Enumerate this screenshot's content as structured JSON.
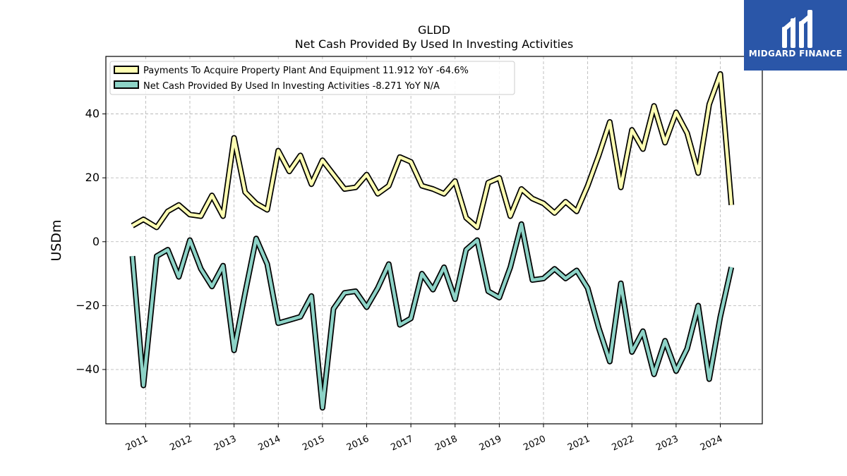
{
  "colors": {
    "series1": "#ffffb3",
    "series2": "#8dd3c7",
    "grid": "#b0b0b0",
    "logo_bg": "#2a56a8"
  },
  "logo": {
    "text": "MIDGARD FINANCE",
    "icon": "midgard-m-logo-icon"
  },
  "chart_data": {
    "type": "line",
    "title": "GLDD",
    "subtitle": "Net Cash Provided By Used In Investing Activities",
    "ylabel": "USDm",
    "xlabel": "",
    "ylim": [
      -57,
      58
    ],
    "xlim": [
      2010.1,
      2024.95
    ],
    "yticks": [
      {
        "v": 40,
        "label": "40"
      },
      {
        "v": 20,
        "label": "20"
      },
      {
        "v": 0,
        "label": "0"
      },
      {
        "v": -20,
        "label": "−20"
      },
      {
        "v": -40,
        "label": "−40"
      }
    ],
    "xticks": [
      {
        "v": 2011,
        "label": "2011"
      },
      {
        "v": 2012,
        "label": "2012"
      },
      {
        "v": 2013,
        "label": "2013"
      },
      {
        "v": 2014,
        "label": "2014"
      },
      {
        "v": 2015,
        "label": "2015"
      },
      {
        "v": 2016,
        "label": "2016"
      },
      {
        "v": 2017,
        "label": "2017"
      },
      {
        "v": 2018,
        "label": "2018"
      },
      {
        "v": 2019,
        "label": "2019"
      },
      {
        "v": 2020,
        "label": "2020"
      },
      {
        "v": 2021,
        "label": "2021"
      },
      {
        "v": 2022,
        "label": "2022"
      },
      {
        "v": 2023,
        "label": "2023"
      },
      {
        "v": 2024,
        "label": "2024"
      }
    ],
    "grid": true,
    "legend": "upper-left",
    "x": [
      2010.7,
      2010.95,
      2011.25,
      2011.5,
      2011.75,
      2012.0,
      2012.25,
      2012.5,
      2012.75,
      2013.0,
      2013.25,
      2013.5,
      2013.75,
      2014.0,
      2014.25,
      2014.5,
      2014.75,
      2015.0,
      2015.25,
      2015.5,
      2015.75,
      2016.0,
      2016.25,
      2016.5,
      2016.75,
      2017.0,
      2017.25,
      2017.5,
      2017.75,
      2018.0,
      2018.25,
      2018.5,
      2018.75,
      2019.0,
      2019.25,
      2019.5,
      2019.75,
      2020.0,
      2020.25,
      2020.5,
      2020.75,
      2021.0,
      2021.25,
      2021.5,
      2021.75,
      2022.0,
      2022.25,
      2022.5,
      2022.75,
      2023.0,
      2023.25,
      2023.5,
      2023.75,
      2024.0,
      2024.25
    ],
    "series": [
      {
        "name": "Payments To Acquire Property Plant And Equipment  11.912 YoY -64.6%",
        "color": "#ffffb3",
        "values": [
          5.0,
          7.0,
          4.5,
          9.5,
          11.5,
          8.5,
          8.0,
          14.5,
          8.0,
          32.5,
          15.5,
          12.0,
          10.0,
          28.5,
          22.0,
          27.0,
          18.0,
          25.5,
          21.0,
          16.5,
          17.0,
          21.0,
          15.0,
          17.5,
          26.5,
          25.0,
          17.5,
          16.5,
          15.0,
          19.0,
          7.5,
          4.5,
          18.5,
          20.0,
          8.0,
          16.5,
          13.5,
          12.0,
          9.0,
          12.5,
          9.5,
          17.5,
          27.0,
          37.5,
          17.0,
          35.0,
          29.0,
          42.5,
          31.0,
          40.5,
          34.0,
          21.5,
          43.0,
          52.5,
          11.5
        ]
      },
      {
        "name": "Net Cash Provided By Used In Investing Activities  -8.271 YoY N/A",
        "color": "#8dd3c7",
        "values": [
          -4.5,
          -45.0,
          -4.5,
          -2.5,
          -11.0,
          0.5,
          -8.5,
          -14.0,
          -7.5,
          -34.0,
          -16.0,
          1.0,
          -7.0,
          -25.5,
          -24.5,
          -23.5,
          -17.0,
          -52.0,
          -21.0,
          -16.0,
          -15.5,
          -20.5,
          -14.5,
          -7.0,
          -26.0,
          -24.0,
          -10.0,
          -15.0,
          -8.0,
          -18.0,
          -2.5,
          0.5,
          -15.5,
          -17.5,
          -8.0,
          5.5,
          -12.0,
          -11.5,
          -8.5,
          -11.5,
          -9.0,
          -14.5,
          -27.0,
          -37.5,
          -13.0,
          -34.5,
          -28.0,
          -41.5,
          -31.0,
          -40.5,
          -33.5,
          -20.0,
          -43.0,
          -23.5,
          -8.0
        ]
      }
    ]
  }
}
